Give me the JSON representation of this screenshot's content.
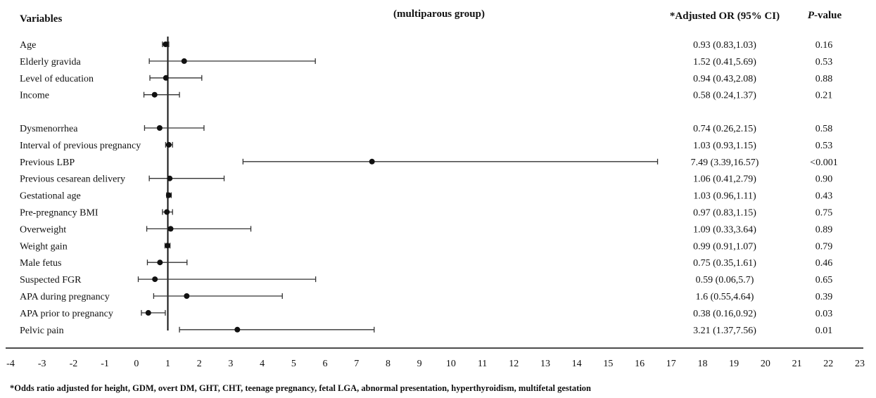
{
  "header": {
    "variables": "Variables",
    "group": "(multiparous group)",
    "or_header": "*Adjusted OR (95% CI)",
    "p_header_italic": "P",
    "p_header_rest": "-value"
  },
  "footnote": "*Odds ratio adjusted for height, GDM, overt DM, GHT, CHT, teenage pregnancy, fetal LGA, abnormal presentation, hyperthyroidism, multifetal gestation",
  "chart_data": {
    "type": "forest",
    "title": "(multiparous group)",
    "xlim": [
      -4,
      23
    ],
    "xticks": [
      -4,
      -3,
      -2,
      -1,
      0,
      1,
      2,
      3,
      4,
      5,
      6,
      7,
      8,
      9,
      10,
      11,
      12,
      13,
      14,
      15,
      16,
      17,
      18,
      19,
      20,
      21,
      22,
      23
    ],
    "reference_line": 1,
    "rows": [
      {
        "label": "Age",
        "or": 0.93,
        "lo": 0.83,
        "hi": 1.03,
        "ci_text": "0.93 (0.83,1.03)",
        "p": "0.16"
      },
      {
        "label": "Elderly gravida",
        "or": 1.52,
        "lo": 0.41,
        "hi": 5.69,
        "ci_text": "1.52 (0.41,5.69)",
        "p": "0.53"
      },
      {
        "label": "Level of education",
        "or": 0.94,
        "lo": 0.43,
        "hi": 2.08,
        "ci_text": "0.94 (0.43,2.08)",
        "p": "0.88"
      },
      {
        "label": "Income",
        "or": 0.58,
        "lo": 0.24,
        "hi": 1.37,
        "ci_text": "0.58 (0.24,1.37)",
        "p": "0.21"
      },
      {
        "label": "Dysmenorrhea",
        "or": 0.74,
        "lo": 0.26,
        "hi": 2.15,
        "ci_text": "0.74 (0.26,2.15)",
        "p": "0.58"
      },
      {
        "label": "Interval of previous pregnancy",
        "or": 1.03,
        "lo": 0.93,
        "hi": 1.15,
        "ci_text": "1.03 (0.93,1.15)",
        "p": "0.53"
      },
      {
        "label": "Previous LBP",
        "or": 7.49,
        "lo": 3.39,
        "hi": 16.57,
        "ci_text": "7.49 (3.39,16.57)",
        "p": "<0.001"
      },
      {
        "label": "Previous cesarean delivery",
        "or": 1.06,
        "lo": 0.41,
        "hi": 2.79,
        "ci_text": "1.06 (0.41,2.79)",
        "p": "0.90"
      },
      {
        "label": "Gestational age",
        "or": 1.03,
        "lo": 0.96,
        "hi": 1.11,
        "ci_text": "1.03 (0.96,1.11)",
        "p": "0.43"
      },
      {
        "label": "Pre-pregnancy BMI",
        "or": 0.97,
        "lo": 0.83,
        "hi": 1.15,
        "ci_text": "0.97 (0.83,1.15)",
        "p": "0.75"
      },
      {
        "label": "Overweight",
        "or": 1.09,
        "lo": 0.33,
        "hi": 3.64,
        "ci_text": "1.09 (0.33,3.64)",
        "p": "0.89"
      },
      {
        "label": "Weight gain",
        "or": 0.99,
        "lo": 0.91,
        "hi": 1.07,
        "ci_text": "0.99 (0.91,1.07)",
        "p": "0.79"
      },
      {
        "label": "Male fetus",
        "or": 0.75,
        "lo": 0.35,
        "hi": 1.61,
        "ci_text": "0.75 (0.35,1.61)",
        "p": "0.46"
      },
      {
        "label": "Suspected FGR",
        "or": 0.59,
        "lo": 0.06,
        "hi": 5.7,
        "ci_text": "0.59 (0.06,5.7)",
        "p": "0.65"
      },
      {
        "label": "APA during pregnancy",
        "or": 1.6,
        "lo": 0.55,
        "hi": 4.64,
        "ci_text": "1.6 (0.55,4.64)",
        "p": "0.39"
      },
      {
        "label": "APA prior to pregnancy",
        "or": 0.38,
        "lo": 0.16,
        "hi": 0.92,
        "ci_text": "0.38 (0.16,0.92)",
        "p": "0.03"
      },
      {
        "label": "Pelvic pain",
        "or": 3.21,
        "lo": 1.37,
        "hi": 7.56,
        "ci_text": "3.21 (1.37,7.56)",
        "p": "0.01"
      }
    ]
  }
}
